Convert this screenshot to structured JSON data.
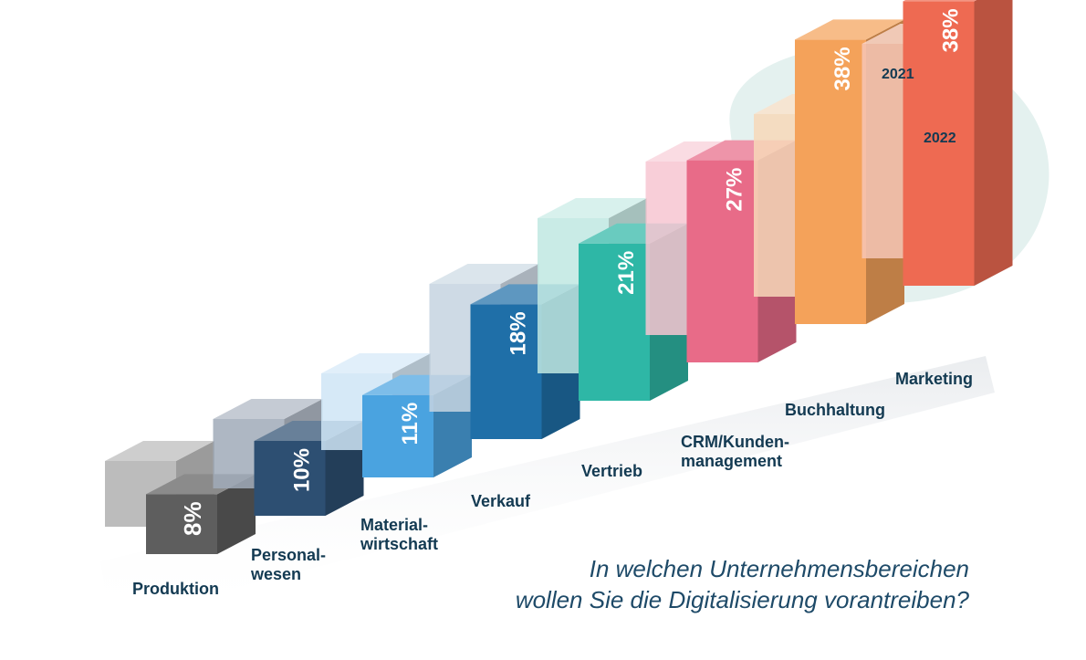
{
  "chart_data": {
    "type": "bar",
    "style": "3d-grouped",
    "title": "In welchen Unternehmensbereichen wollen Sie die Digitalisierung vorantreiben?",
    "title_lines": [
      "In welchen Unternehmensbereichen",
      "wollen Sie die Digitalisierung vorantreiben?"
    ],
    "categories": [
      "Produktion",
      "Personalwesen",
      "Materialwirtschaft",
      "Verkauf",
      "Vertrieb",
      "CRM/Kundenmanagement",
      "Buchhaltung",
      "Marketing"
    ],
    "category_label_lines": [
      [
        "Produktion"
      ],
      [
        "Personal-",
        "wesen"
      ],
      [
        "Material-",
        "wirtschaft"
      ],
      [
        "Verkauf"
      ],
      [
        "Vertrieb"
      ],
      [
        "CRM/Kunden-",
        "management"
      ],
      [
        "Buchhaltung"
      ],
      [
        "Marketing"
      ]
    ],
    "series": [
      {
        "name": "2021",
        "values": [
          null,
          null,
          null,
          null,
          null,
          null,
          null,
          null
        ],
        "note": "values not labeled; shown as translucent back bars"
      },
      {
        "name": "2022",
        "values": [
          8,
          10,
          11,
          18,
          21,
          27,
          38,
          38
        ]
      }
    ],
    "value_labels": [
      "8%",
      "10%",
      "11%",
      "18%",
      "21%",
      "27%",
      "38%",
      "38%"
    ],
    "legend": [
      "2021",
      "2022"
    ],
    "legend_placement": "top-right, above highlighted group",
    "highlight": [
      "Buchhaltung",
      "Marketing"
    ],
    "colors": {
      "2022": [
        "#5e5e5e",
        "#2d4f72",
        "#4aa3e0",
        "#1f6fa8",
        "#2eb7a6",
        "#e86b88",
        "#f4a25a",
        "#ee6a52"
      ],
      "2021": [
        "#b0b0b0",
        "#a0aab8",
        "#cfe5f6",
        "#c5d4e0",
        "#bfe8e2",
        "#f7c6d1",
        "#f7d8b8",
        "#f6c6b6"
      ],
      "highlight_blob": "#e4f1ef",
      "label_text": "#133a52",
      "question_text": "#1e4a68"
    }
  }
}
